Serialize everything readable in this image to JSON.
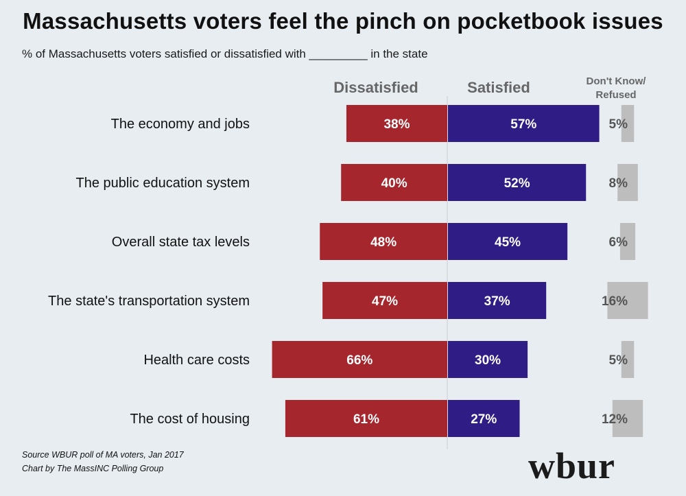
{
  "title": "Massachusetts voters feel the pinch on pocketbook issues",
  "subtitle": "% of Massachusetts voters satisfied or dissatisfied with _________ in the state",
  "source_line1": "Source WBUR poll of MA voters, Jan 2017",
  "source_line2": "Chart by The MassINC Polling Group",
  "logo_text": "wbur",
  "colors": {
    "dissatisfied": "#a6262d",
    "satisfied": "#2f1c84",
    "dont_know": "#bdbdbd",
    "background": "#e8edf2"
  },
  "chart_data": {
    "type": "bar",
    "orientation": "horizontal-diverging",
    "categories": [
      "The economy and jobs",
      "The public education system",
      "Overall state tax levels",
      "The state's transportation system",
      "Health care costs",
      "The cost of housing"
    ],
    "series": [
      {
        "name": "Dissatisfied",
        "values": [
          38,
          40,
          48,
          47,
          66,
          61
        ],
        "labels": [
          "38%",
          "40%",
          "48%",
          "47%",
          "66%",
          "61%"
        ]
      },
      {
        "name": "Satisfied",
        "values": [
          57,
          52,
          45,
          37,
          30,
          27
        ],
        "labels": [
          "57%",
          "52%",
          "45%",
          "37%",
          "30%",
          "27%"
        ]
      },
      {
        "name": "Don't Know/ Refused",
        "values": [
          5,
          8,
          6,
          16,
          5,
          12
        ],
        "labels": [
          "5%",
          "8%",
          "6%",
          "16%",
          "5%",
          "12%"
        ]
      }
    ],
    "header_line2": "Refused",
    "header_line1": "Don't Know/",
    "xlabel": "",
    "ylabel": ""
  }
}
